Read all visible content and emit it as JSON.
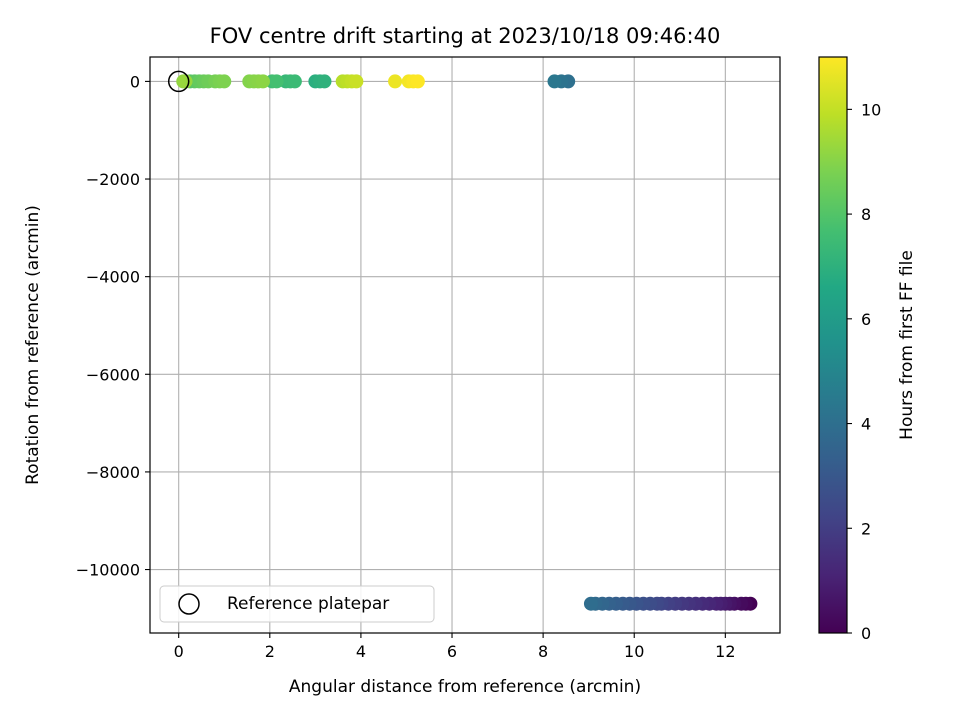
{
  "chart_data": {
    "type": "scatter",
    "title": "FOV centre drift starting at 2023/10/18 09:46:40",
    "xlabel": "Angular distance from reference (arcmin)",
    "ylabel": "Rotation from reference (arcmin)",
    "xlim": [
      -0.63,
      13.2
    ],
    "ylim": [
      -11300,
      500
    ],
    "xticks": [
      0,
      2,
      4,
      6,
      8,
      10,
      12
    ],
    "xtick_labels": [
      "0",
      "2",
      "4",
      "6",
      "8",
      "10",
      "12"
    ],
    "yticks": [
      0,
      -2000,
      -4000,
      -6000,
      -8000,
      -10000
    ],
    "ytick_labels": [
      "0",
      "−2000",
      "−4000",
      "−6000",
      "−8000",
      "−10000"
    ],
    "grid": true,
    "colormap": "viridis",
    "colorbar": {
      "label": "Hours from first FF file",
      "range": [
        0,
        11
      ],
      "ticks": [
        0,
        2,
        4,
        6,
        8,
        10
      ],
      "tick_labels": [
        "0",
        "2",
        "4",
        "6",
        "8",
        "10"
      ]
    },
    "legend": {
      "placement": "lower-left",
      "entries": [
        {
          "label": "Reference platepar",
          "marker": "open-circle"
        }
      ]
    },
    "series": [
      {
        "name": "Reference platepar",
        "marker": "open-circle",
        "points": [
          {
            "x": 0.0,
            "y": 0
          }
        ]
      },
      {
        "marker": "filled-circle",
        "points": [
          {
            "x": 12.55,
            "y": -10700,
            "h": 0.0
          },
          {
            "x": 12.45,
            "y": -10700,
            "h": 0.15
          },
          {
            "x": 12.35,
            "y": -10700,
            "h": 0.3
          },
          {
            "x": 12.2,
            "y": -10700,
            "h": 0.45
          },
          {
            "x": 12.1,
            "y": -10700,
            "h": 0.6
          },
          {
            "x": 12.0,
            "y": -10700,
            "h": 0.75
          },
          {
            "x": 11.9,
            "y": -10700,
            "h": 0.9
          },
          {
            "x": 11.8,
            "y": -10700,
            "h": 1.05
          },
          {
            "x": 11.65,
            "y": -10700,
            "h": 1.2
          },
          {
            "x": 11.5,
            "y": -10700,
            "h": 1.35
          },
          {
            "x": 11.35,
            "y": -10700,
            "h": 1.5
          },
          {
            "x": 11.2,
            "y": -10700,
            "h": 1.65
          },
          {
            "x": 11.05,
            "y": -10700,
            "h": 1.8
          },
          {
            "x": 10.9,
            "y": -10700,
            "h": 1.95
          },
          {
            "x": 10.75,
            "y": -10700,
            "h": 2.1
          },
          {
            "x": 10.6,
            "y": -10700,
            "h": 2.25
          },
          {
            "x": 10.5,
            "y": -10700,
            "h": 2.4
          },
          {
            "x": 10.35,
            "y": -10700,
            "h": 2.55
          },
          {
            "x": 10.2,
            "y": -10700,
            "h": 2.7
          },
          {
            "x": 10.05,
            "y": -10700,
            "h": 2.85
          },
          {
            "x": 9.9,
            "y": -10700,
            "h": 3.0
          },
          {
            "x": 9.75,
            "y": -10700,
            "h": 3.15
          },
          {
            "x": 9.6,
            "y": -10700,
            "h": 3.3
          },
          {
            "x": 9.45,
            "y": -10700,
            "h": 3.45
          },
          {
            "x": 9.3,
            "y": -10700,
            "h": 3.6
          },
          {
            "x": 9.15,
            "y": -10700,
            "h": 3.75
          },
          {
            "x": 9.05,
            "y": -10700,
            "h": 3.9
          },
          {
            "x": 8.55,
            "y": 0,
            "h": 4.05
          },
          {
            "x": 8.4,
            "y": 0,
            "h": 4.2
          },
          {
            "x": 8.25,
            "y": 0,
            "h": 4.35
          },
          {
            "x": 3.0,
            "y": 0,
            "h": 6.9
          },
          {
            "x": 3.1,
            "y": 0,
            "h": 7.0
          },
          {
            "x": 3.2,
            "y": 0,
            "h": 7.05
          },
          {
            "x": 2.35,
            "y": 0,
            "h": 7.3
          },
          {
            "x": 2.45,
            "y": 0,
            "h": 7.4
          },
          {
            "x": 2.55,
            "y": 0,
            "h": 7.45
          },
          {
            "x": 2.05,
            "y": 0,
            "h": 7.6
          },
          {
            "x": 2.15,
            "y": 0,
            "h": 7.7
          },
          {
            "x": 0.25,
            "y": 0,
            "h": 8.0
          },
          {
            "x": 0.35,
            "y": 0,
            "h": 8.2
          },
          {
            "x": 0.45,
            "y": 0,
            "h": 8.35
          },
          {
            "x": 0.55,
            "y": 0,
            "h": 8.45
          },
          {
            "x": 0.65,
            "y": 0,
            "h": 8.55
          },
          {
            "x": 0.8,
            "y": 0,
            "h": 8.7
          },
          {
            "x": 0.9,
            "y": 0,
            "h": 8.8
          },
          {
            "x": 1.0,
            "y": 0,
            "h": 8.85
          },
          {
            "x": 1.55,
            "y": 0,
            "h": 8.95
          },
          {
            "x": 1.65,
            "y": 0,
            "h": 9.0
          },
          {
            "x": 1.75,
            "y": 0,
            "h": 9.05
          },
          {
            "x": 1.85,
            "y": 0,
            "h": 9.1
          },
          {
            "x": 0.1,
            "y": 0,
            "h": 9.2
          },
          {
            "x": 0.15,
            "y": 0,
            "h": 9.3
          },
          {
            "x": 3.6,
            "y": 0,
            "h": 9.8
          },
          {
            "x": 3.7,
            "y": 0,
            "h": 9.9
          },
          {
            "x": 3.8,
            "y": 0,
            "h": 10.0
          },
          {
            "x": 3.9,
            "y": 0,
            "h": 10.1
          },
          {
            "x": 4.75,
            "y": 0,
            "h": 10.7
          },
          {
            "x": 5.05,
            "y": 0,
            "h": 10.85
          },
          {
            "x": 5.15,
            "y": 0,
            "h": 10.95
          },
          {
            "x": 5.25,
            "y": 0,
            "h": 11.0
          }
        ]
      }
    ]
  }
}
